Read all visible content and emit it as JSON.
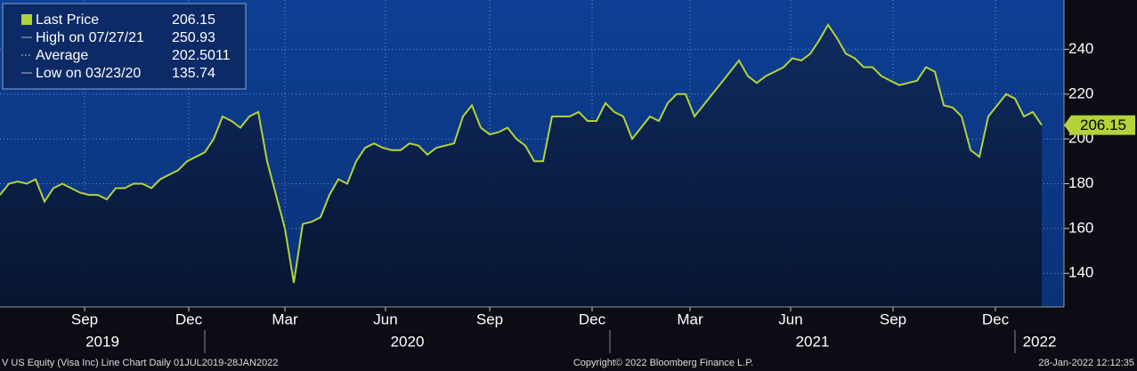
{
  "chart_data": {
    "type": "line",
    "series": [
      {
        "name": "Last Price",
        "color": "#b4d23a",
        "values": [
          175,
          180,
          181,
          180,
          182,
          172,
          178,
          180,
          178,
          176,
          175,
          175,
          173,
          178,
          178,
          180,
          180,
          178,
          182,
          184,
          186,
          190,
          192,
          194,
          200,
          210,
          208,
          205,
          210,
          212,
          190,
          175,
          160,
          135.74,
          162,
          163,
          165,
          175,
          182,
          180,
          190,
          196,
          198,
          196,
          195,
          195,
          198,
          197,
          193,
          196,
          197,
          198,
          210,
          215,
          205,
          202,
          203,
          205,
          200,
          197,
          190,
          190,
          210,
          210,
          210,
          212,
          208,
          208,
          216,
          212,
          210,
          200,
          205,
          210,
          208,
          216,
          220,
          220,
          210,
          215,
          220,
          225,
          230,
          235,
          228,
          225,
          228,
          230,
          232,
          236,
          235,
          238,
          244,
          250.93,
          245,
          238,
          236,
          232,
          232,
          228,
          226,
          224,
          225,
          226,
          232,
          230,
          215,
          214,
          210,
          195,
          192,
          210,
          215,
          220,
          218,
          210,
          212,
          206.15
        ]
      }
    ],
    "legend": [
      {
        "label": "Last Price",
        "value": 206.15
      },
      {
        "label": "High on 07/27/21",
        "value": 250.93
      },
      {
        "label": "Average",
        "value": 202.5011
      },
      {
        "label": "Low on 03/23/20",
        "value": 135.74
      }
    ],
    "xlim": [
      0,
      119.5
    ],
    "xticks": [
      {
        "value": 9.5,
        "label": "Sep"
      },
      {
        "value": 21.2,
        "label": "Dec"
      },
      {
        "value": 32,
        "label": "Mar"
      },
      {
        "value": 43.3,
        "label": "Jun"
      },
      {
        "value": 55,
        "label": "Sep"
      },
      {
        "value": 66.5,
        "label": "Dec"
      },
      {
        "value": 77.5,
        "label": "Mar"
      },
      {
        "value": 88.8,
        "label": "Jun"
      },
      {
        "value": 100.3,
        "label": "Sep"
      },
      {
        "value": 111.8,
        "label": "Dec"
      }
    ],
    "year_ticks": [
      {
        "value": 0,
        "label": "2019"
      },
      {
        "value": 23,
        "label": "2020"
      },
      {
        "value": 68.5,
        "label": "2021"
      },
      {
        "value": 114,
        "label": "2022"
      }
    ],
    "ylim": [
      125,
      262
    ],
    "yticks": [
      140,
      160,
      180,
      200,
      220,
      240
    ],
    "grid": true,
    "footer": {
      "left": "V US Equity (Visa Inc) Line Chart  Daily 01JUL2019-28JAN2022",
      "center": "Copyright© 2022 Bloomberg Finance L.P.",
      "right": "28-Jan-2022 12:12:35"
    }
  }
}
